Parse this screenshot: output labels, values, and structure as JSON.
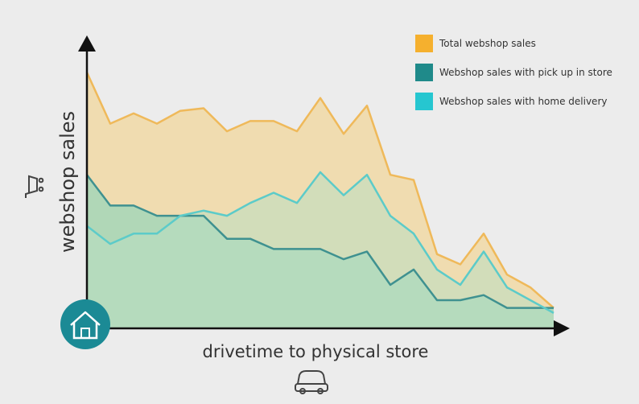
{
  "chart_data": {
    "type": "area",
    "xlabel": "drivetime to physical store",
    "ylabel": "webshop sales",
    "x": [
      0,
      1,
      2,
      3,
      4,
      5,
      6,
      7,
      8,
      9,
      10,
      11,
      12,
      13,
      14,
      15,
      16,
      17,
      18,
      19,
      20
    ],
    "xlim": [
      0,
      20
    ],
    "ylim": [
      0,
      100
    ],
    "series": [
      {
        "name": "Total webshop sales",
        "color": "#f5a623",
        "values": [
          100,
          80,
          84,
          80,
          85,
          86,
          77,
          81,
          81,
          77,
          90,
          76,
          87,
          60,
          58,
          29,
          25,
          37,
          21,
          16,
          8
        ]
      },
      {
        "name": "Webshop sales with pick up in store",
        "color": "#1f8a8a",
        "values": [
          60,
          48,
          48,
          44,
          44,
          44,
          35,
          35,
          31,
          31,
          31,
          27,
          30,
          17,
          23,
          11,
          11,
          13,
          8,
          8,
          8
        ]
      },
      {
        "name": "Webshop sales with home delivery",
        "color": "#26c6d0",
        "values": [
          40,
          33,
          37,
          37,
          44,
          46,
          44,
          49,
          53,
          49,
          61,
          52,
          60,
          44,
          37,
          23,
          17,
          30,
          16,
          11,
          6
        ]
      }
    ],
    "legend_position": "top-right",
    "grid": false
  },
  "icons": {
    "y_axis": "shopping-cart-icon",
    "origin": "house-icon",
    "x_axis": "car-icon"
  }
}
